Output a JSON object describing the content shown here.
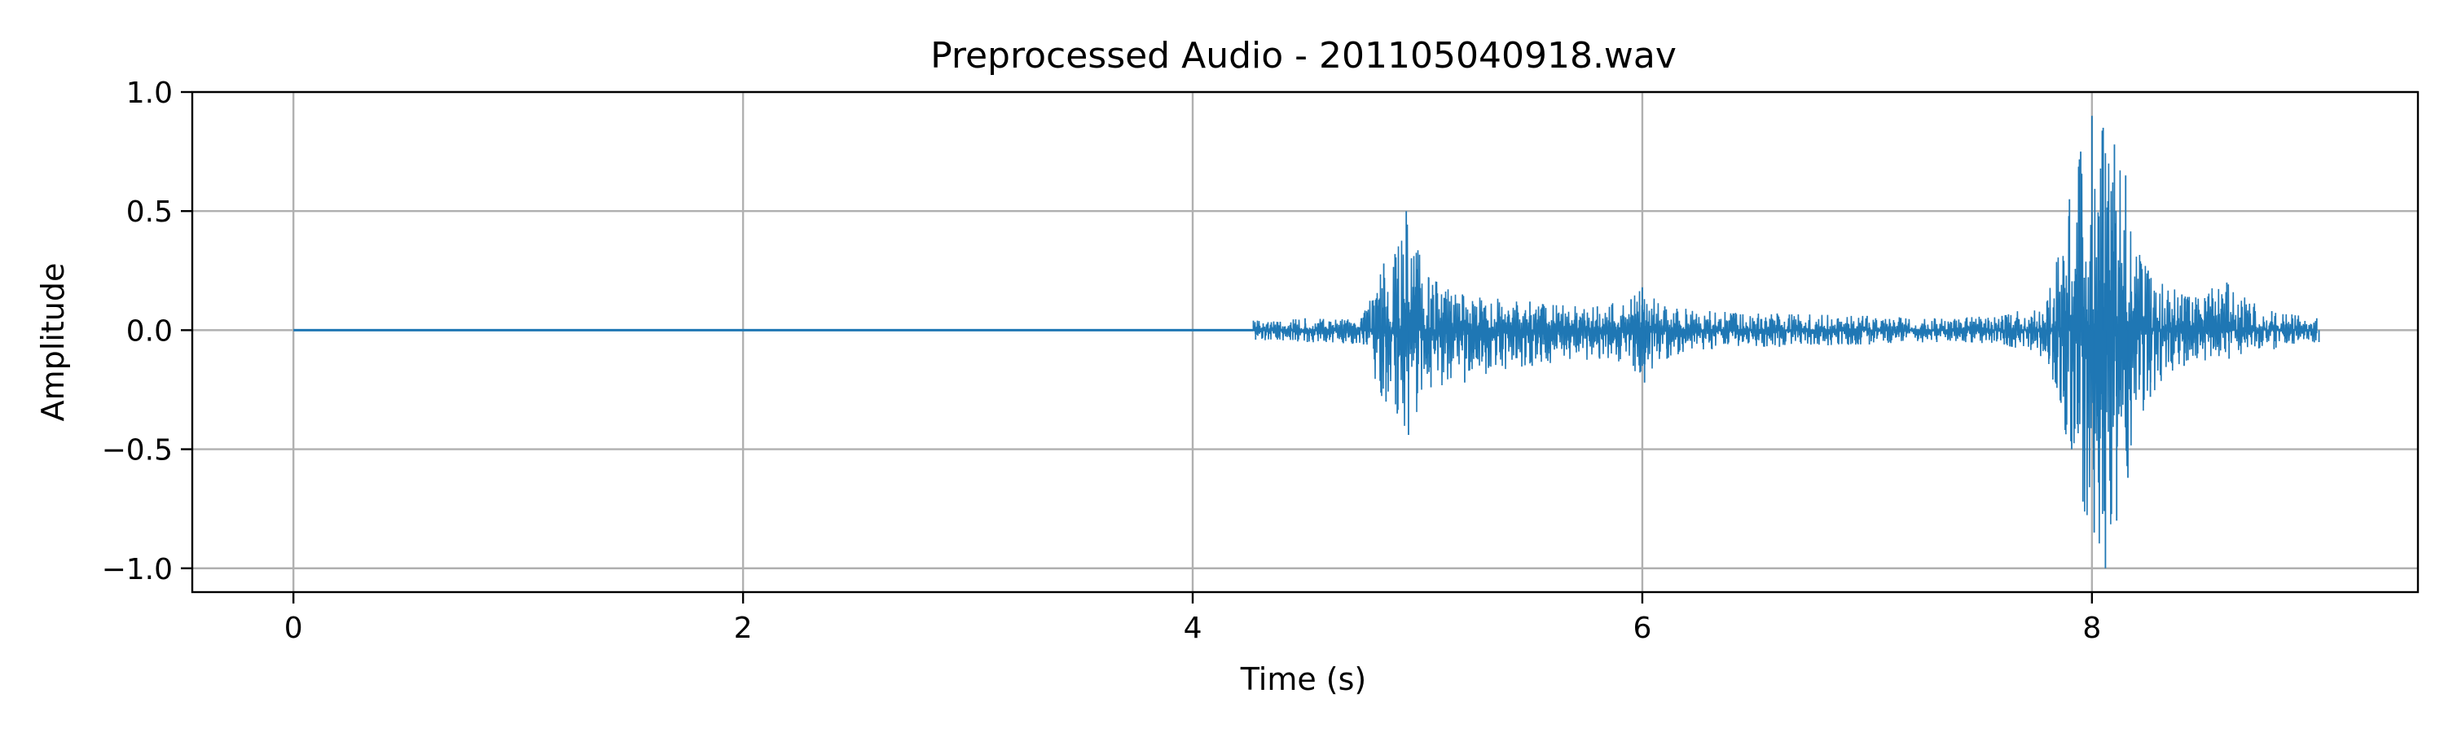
{
  "chart_data": {
    "type": "line",
    "title": "Preprocessed Audio - 201105040918.wav",
    "xlabel": "Time (s)",
    "ylabel": "Amplitude",
    "xlim": [
      -0.45,
      9.45
    ],
    "ylim": [
      -1.1,
      1.0
    ],
    "grid": true,
    "legend": "none",
    "series_color": "#1f77b4",
    "x_ticks": [
      {
        "value": 0,
        "label": "0"
      },
      {
        "value": 2,
        "label": "2"
      },
      {
        "value": 4,
        "label": "4"
      },
      {
        "value": 6,
        "label": "6"
      },
      {
        "value": 8,
        "label": "8"
      }
    ],
    "y_ticks": [
      {
        "value": 1.0,
        "label": "1.0"
      },
      {
        "value": 0.5,
        "label": "0.5"
      },
      {
        "value": 0.0,
        "label": "0.0"
      },
      {
        "value": -0.5,
        "label": "−0.5"
      },
      {
        "value": -1.0,
        "label": "−1.0"
      }
    ],
    "series": [
      {
        "silence_span": [
          0.0,
          4.27
        ],
        "duration": 9.0,
        "envelope": {
          "x": [
            4.27,
            4.5,
            4.75,
            4.85,
            4.9,
            4.95,
            5.05,
            5.2,
            5.5,
            5.8,
            5.95,
            6.0,
            6.1,
            6.3,
            6.6,
            7.0,
            7.3,
            7.6,
            7.8,
            7.9,
            7.95,
            8.0,
            8.05,
            8.1,
            8.15,
            8.25,
            8.4,
            8.6,
            8.8,
            9.0
          ],
          "upper": [
            0.04,
            0.05,
            0.05,
            0.28,
            0.32,
            0.5,
            0.22,
            0.15,
            0.12,
            0.1,
            0.13,
            0.18,
            0.1,
            0.08,
            0.07,
            0.06,
            0.05,
            0.06,
            0.12,
            0.55,
            0.75,
            0.9,
            0.85,
            0.78,
            0.65,
            0.25,
            0.15,
            0.2,
            0.08,
            0.05
          ],
          "lower": [
            -0.04,
            -0.05,
            -0.06,
            -0.3,
            -0.35,
            -0.44,
            -0.24,
            -0.22,
            -0.15,
            -0.12,
            -0.15,
            -0.22,
            -0.12,
            -0.08,
            -0.07,
            -0.06,
            -0.05,
            -0.06,
            -0.12,
            -0.5,
            -0.72,
            -0.85,
            -1.0,
            -0.8,
            -0.62,
            -0.28,
            -0.15,
            -0.12,
            -0.08,
            -0.05
          ]
        }
      }
    ]
  }
}
